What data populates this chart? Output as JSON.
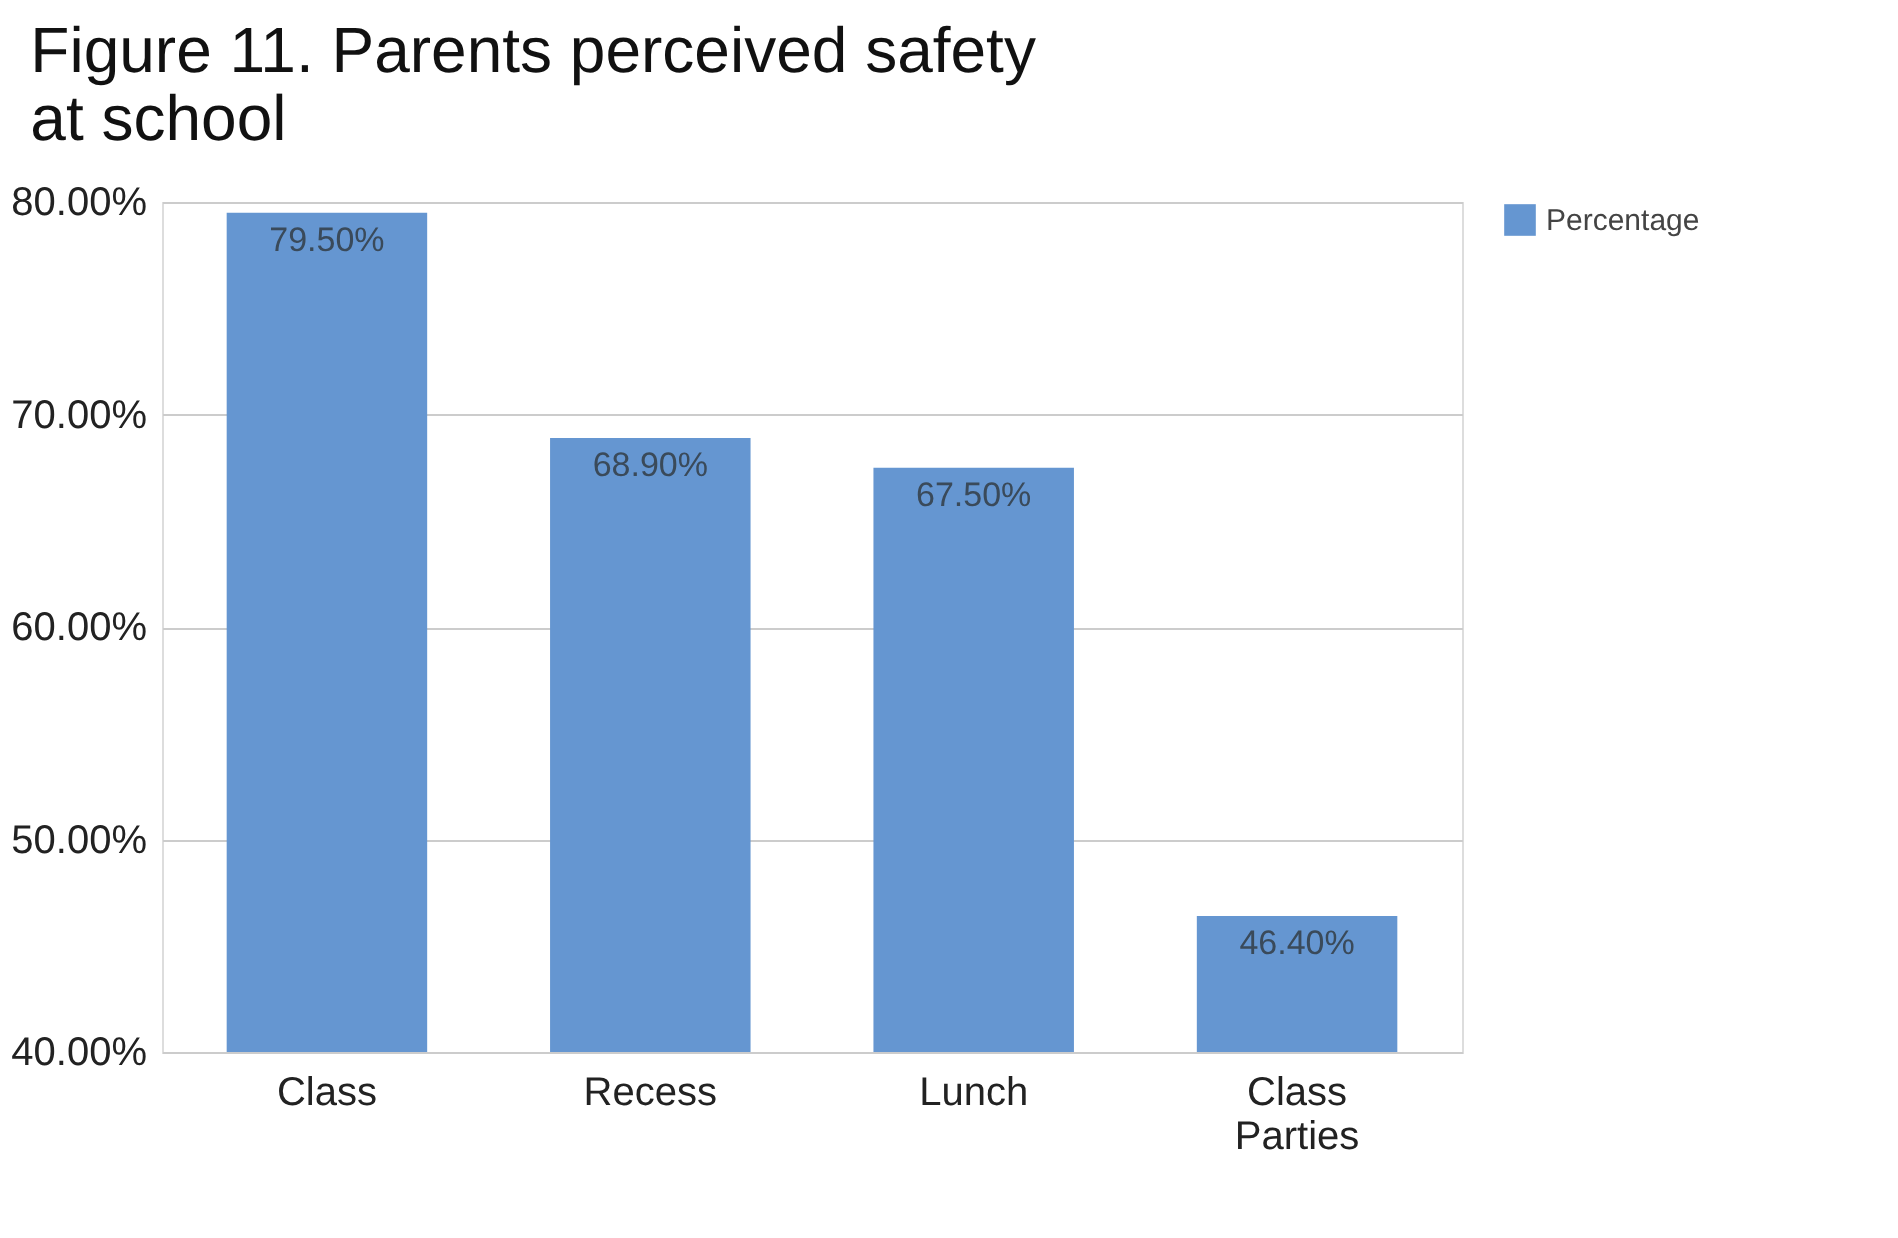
{
  "chart_data": {
    "type": "bar",
    "title": "Figure 11. Parents perceived safety at school",
    "categories": [
      "Class",
      "Recess",
      "Lunch",
      "Class Parties"
    ],
    "series": [
      {
        "name": "Percentage",
        "color": "#6596d1",
        "values": [
          79.5,
          68.9,
          67.5,
          46.4
        ],
        "value_labels": [
          "79.50%",
          "68.90%",
          "67.50%",
          "46.40%"
        ]
      }
    ],
    "ylim": [
      40,
      80
    ],
    "yticks": [
      {
        "value": 40,
        "label": "40.00%"
      },
      {
        "value": 50,
        "label": "50.00%"
      },
      {
        "value": 60,
        "label": "60.00%"
      },
      {
        "value": 70,
        "label": "70.00%"
      },
      {
        "value": 80,
        "label": "80.00%"
      }
    ],
    "grid": "y",
    "legend": "top right"
  }
}
